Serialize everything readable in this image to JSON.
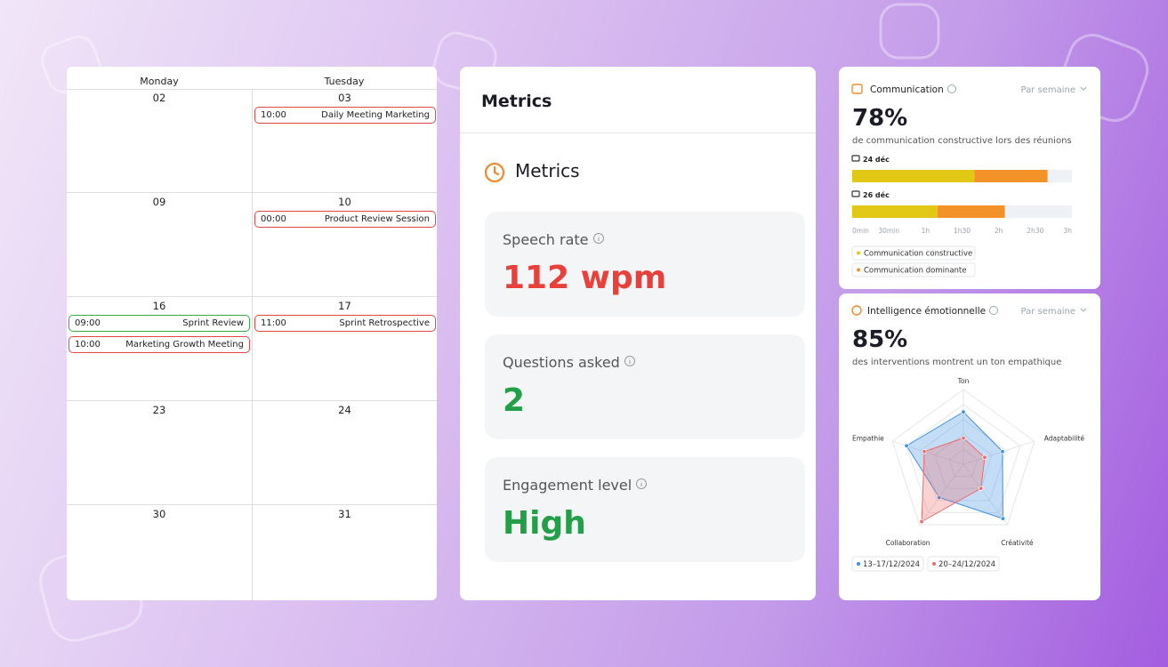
{
  "calendar": {
    "days": [
      "Monday",
      "Tuesday"
    ],
    "weeks": [
      [
        {
          "date": "02",
          "events": []
        },
        {
          "date": "03",
          "events": [
            {
              "time": "10:00",
              "title": "Daily Meeting Marketing",
              "color": "#e04848"
            }
          ]
        }
      ],
      [
        {
          "date": "09",
          "events": []
        },
        {
          "date": "10",
          "events": [
            {
              "time": "00:00",
              "title": "Product Review Session",
              "color": "#e04848"
            }
          ]
        }
      ],
      [
        {
          "date": "16",
          "events": [
            {
              "time": "09:00",
              "title": "Sprint Review",
              "color": "#3aa846"
            },
            {
              "time": "10:00",
              "title": "Marketing Growth Meeting",
              "color": "#e04848"
            }
          ]
        },
        {
          "date": "17",
          "events": [
            {
              "time": "11:00",
              "title": "Sprint Retrospective",
              "color": "#e04848"
            }
          ]
        }
      ],
      [
        {
          "date": "23",
          "events": []
        },
        {
          "date": "24",
          "events": []
        }
      ],
      [
        {
          "date": "30",
          "events": []
        },
        {
          "date": "31",
          "events": []
        }
      ]
    ]
  },
  "metrics": {
    "header": "Metrics",
    "title": "Metrics",
    "cards": [
      {
        "label": "Speech rate",
        "value": "112 wpm",
        "color": "#e8413c"
      },
      {
        "label": "Questions asked",
        "value": 2,
        "color": "#23a047"
      },
      {
        "label": "Engagement level",
        "value": "High",
        "color": "#23a047"
      }
    ]
  },
  "communication": {
    "title": "Communication",
    "period": "Par semaine",
    "headline": "78%",
    "caption": "de communication constructive lors des réunions"
  },
  "emotional": {
    "title": "Intelligence émotionnelle",
    "period": "Par semaine",
    "headline": "85%",
    "caption": "des interventions montrent un ton empathique"
  },
  "chart_data": [
    {
      "type": "bar",
      "orientation": "horizontal",
      "stacked": true,
      "categories": [
        "24 déc",
        "26 déc"
      ],
      "series": [
        {
          "name": "Communication constructive",
          "color": "#e0c814",
          "values": [
            100,
            70
          ]
        },
        {
          "name": "Communication dominante",
          "color": "#f4922a",
          "values": [
            60,
            55
          ]
        }
      ],
      "xlim": [
        0,
        180
      ],
      "xticks": [
        {
          "value": 0,
          "label": "0min"
        },
        {
          "value": 30,
          "label": "30min"
        },
        {
          "value": 60,
          "label": "1h"
        },
        {
          "value": 90,
          "label": "1h30"
        },
        {
          "value": 120,
          "label": "2h"
        },
        {
          "value": 150,
          "label": "2h30"
        },
        {
          "value": 180,
          "label": "3h"
        }
      ]
    },
    {
      "type": "radar",
      "categories": [
        "Ton",
        "Adaptabilité",
        "Créativité",
        "Collaboration",
        "Empathie"
      ],
      "series": [
        {
          "name": "13–17/12/2024",
          "color": "#3b8fe6",
          "values": [
            70,
            55,
            90,
            55,
            80
          ]
        },
        {
          "name": "20–24/12/2024",
          "color": "#f06a6a",
          "values": [
            35,
            30,
            40,
            95,
            55
          ]
        }
      ],
      "rlim": [
        0,
        100
      ],
      "rticks": [
        20,
        40,
        60,
        80,
        100
      ]
    }
  ]
}
